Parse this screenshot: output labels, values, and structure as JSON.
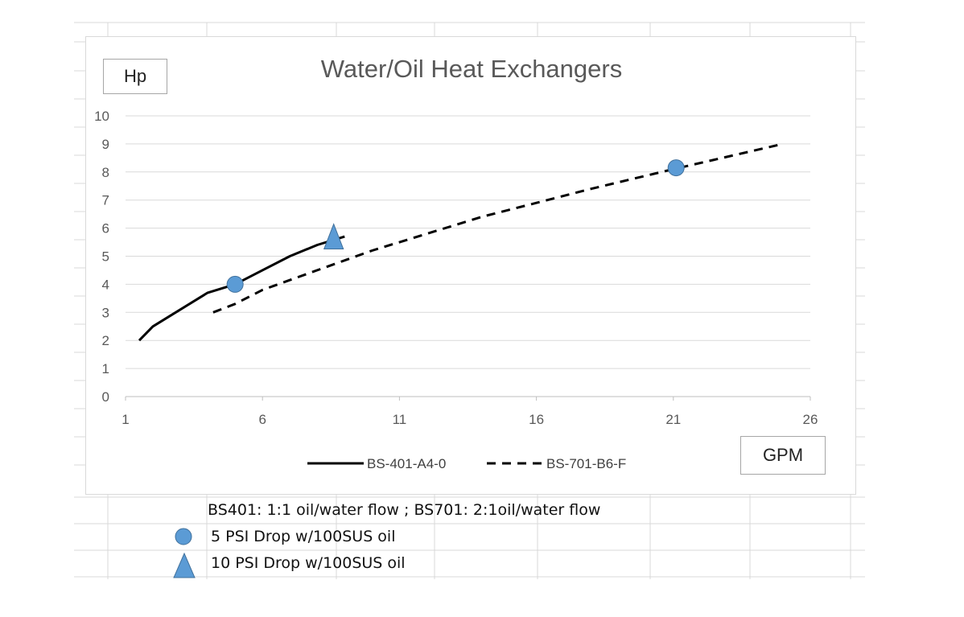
{
  "chart_data": {
    "type": "line",
    "title": "Water/Oil Heat Exchangers",
    "xlabel": "GPM",
    "ylabel": "Hp",
    "xlim": [
      1,
      26
    ],
    "ylim": [
      0,
      10
    ],
    "x_ticks": [
      1,
      6,
      11,
      16,
      21,
      26
    ],
    "y_ticks": [
      0,
      1,
      2,
      3,
      4,
      5,
      6,
      7,
      8,
      9,
      10
    ],
    "grid": "horizontal",
    "legend_position": "bottom",
    "series": [
      {
        "name": "BS-401-A4-0",
        "style": "solid",
        "x": [
          1.5,
          2,
          3,
          4,
          5,
          6,
          7,
          8,
          9
        ],
        "y": [
          2.0,
          2.5,
          3.1,
          3.7,
          4.0,
          4.5,
          5.0,
          5.4,
          5.7
        ]
      },
      {
        "name": "BS-701-B6-F",
        "style": "dashed",
        "x": [
          4.2,
          5,
          6,
          8,
          10,
          12,
          14,
          16,
          18,
          21,
          25
        ],
        "y": [
          3.0,
          3.3,
          3.8,
          4.5,
          5.2,
          5.8,
          6.4,
          6.9,
          7.4,
          8.1,
          9.0
        ]
      }
    ],
    "markers": [
      {
        "shape": "circle",
        "x": 5.0,
        "y": 4.0,
        "color": "#5b9bd5"
      },
      {
        "shape": "triangle",
        "x": 8.6,
        "y": 5.6,
        "color": "#5b9bd5"
      },
      {
        "shape": "circle",
        "x": 21.1,
        "y": 8.15,
        "color": "#5b9bd5"
      }
    ]
  },
  "notes": {
    "flow_ratio": "BS401: 1:1 oil/water flow ;   BS701: 2:1oil/water flow",
    "circle_label": "5 PSI Drop w/100SUS oil",
    "triangle_label": "10 PSI Drop w/100SUS oil"
  },
  "colors": {
    "marker": "#5b9bd5",
    "marker_edge": "#41719c",
    "series_line": "#000000",
    "grid": "#d9d9d9"
  }
}
